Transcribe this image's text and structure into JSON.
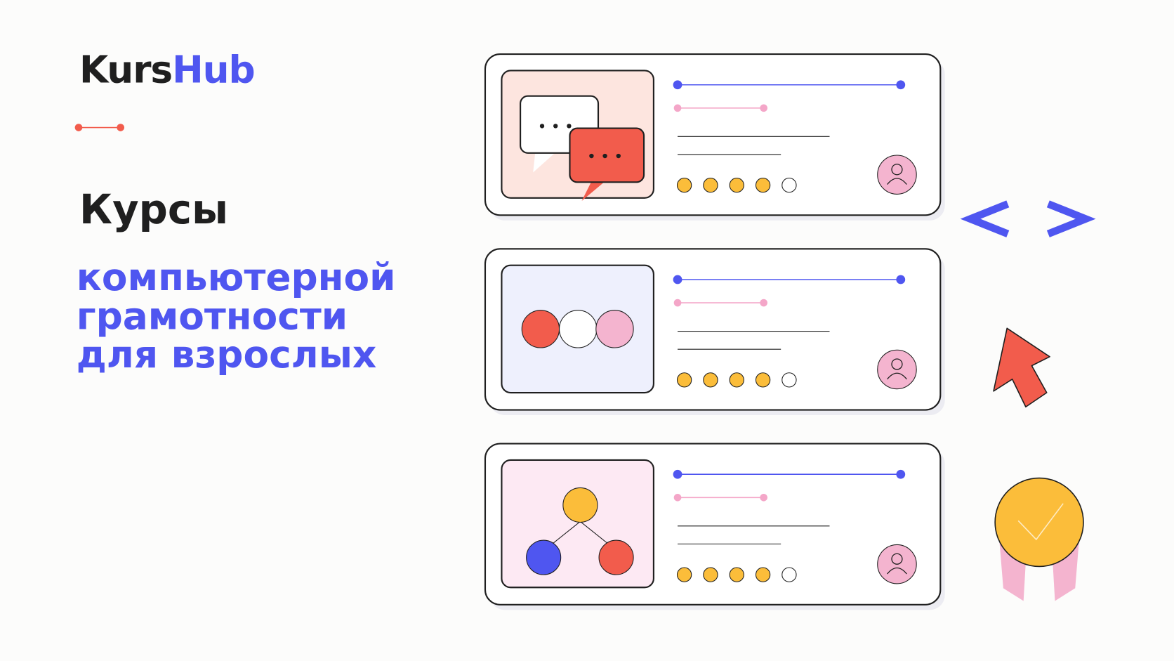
{
  "logo": {
    "part1": "Kurs",
    "part2": "Hub"
  },
  "heading": "Курсы",
  "subheading": [
    "компьютерной",
    "грамотности",
    "для взрослых"
  ]
}
